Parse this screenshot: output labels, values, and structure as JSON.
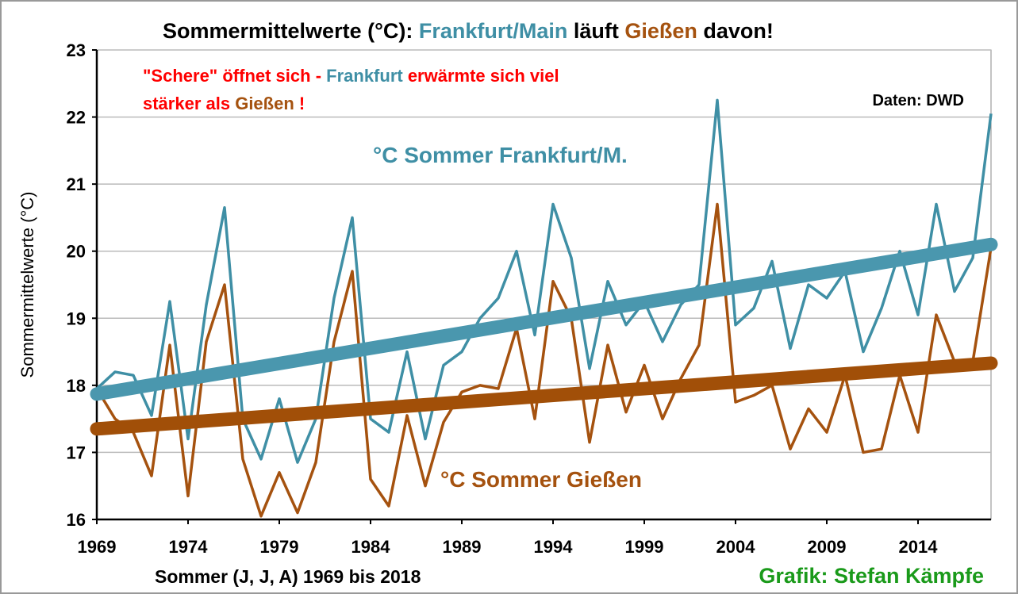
{
  "chart_data": {
    "type": "line",
    "title_parts": [
      {
        "text": "Sommermittelwerte (°C): ",
        "color": "#000000"
      },
      {
        "text": "Frankfurt/Main",
        "color": "#3f8fa5"
      },
      {
        "text": " läuft ",
        "color": "#000000"
      },
      {
        "text": "Gießen",
        "color": "#a5520f"
      },
      {
        "text": " davon!",
        "color": "#000000"
      }
    ],
    "annotation_lines": [
      [
        {
          "text": "\"Schere\" öffnet sich - ",
          "color": "#ff0000"
        },
        {
          "text": "Frankfurt",
          "color": "#3f8fa5"
        },
        {
          "text": " erwärmte sich viel",
          "color": "#ff0000"
        }
      ],
      [
        {
          "text": "stärker als ",
          "color": "#ff0000"
        },
        {
          "text": "Gießen",
          "color": "#a5520f"
        },
        {
          "text": " !",
          "color": "#ff0000"
        }
      ]
    ],
    "source": "Daten: DWD",
    "xlabel": "Sommer (J, J, A) 1969 bis 2018",
    "credit": "Grafik: Stefan Kämpfe",
    "ylabel": "Sommermittelwerte (°C)",
    "x": [
      1969,
      1970,
      1971,
      1972,
      1973,
      1974,
      1975,
      1976,
      1977,
      1978,
      1979,
      1980,
      1981,
      1982,
      1983,
      1984,
      1985,
      1986,
      1987,
      1988,
      1989,
      1990,
      1991,
      1992,
      1993,
      1994,
      1995,
      1996,
      1997,
      1998,
      1999,
      2000,
      2001,
      2002,
      2003,
      2004,
      2005,
      2006,
      2007,
      2008,
      2009,
      2010,
      2011,
      2012,
      2013,
      2014,
      2015,
      2016,
      2017,
      2018
    ],
    "series": [
      {
        "name": "°C Sommer Frankfurt/M.",
        "color": "#3f8fa5",
        "values": [
          17.95,
          18.2,
          18.15,
          17.55,
          19.25,
          17.2,
          19.2,
          20.65,
          17.5,
          16.9,
          17.8,
          16.85,
          17.5,
          19.3,
          20.5,
          17.5,
          17.3,
          18.5,
          17.2,
          18.3,
          18.5,
          19.0,
          19.3,
          20.0,
          18.75,
          20.7,
          19.9,
          18.25,
          19.55,
          18.9,
          19.25,
          18.65,
          19.2,
          19.5,
          22.25,
          18.9,
          19.15,
          19.85,
          18.55,
          19.5,
          19.3,
          19.7,
          18.5,
          19.15,
          20.0,
          19.05,
          20.7,
          19.4,
          19.9,
          22.05
        ]
      },
      {
        "name": "°C Sommer Gießen",
        "color": "#a5520f",
        "values": [
          17.95,
          17.5,
          17.3,
          16.65,
          18.6,
          16.35,
          18.65,
          19.5,
          16.9,
          16.05,
          16.7,
          16.1,
          16.85,
          18.65,
          19.7,
          16.6,
          16.2,
          17.55,
          16.5,
          17.45,
          17.9,
          18.0,
          17.95,
          18.85,
          17.5,
          19.55,
          19.0,
          17.15,
          18.6,
          17.6,
          18.3,
          17.5,
          18.1,
          18.6,
          20.7,
          17.75,
          17.85,
          18.0,
          17.05,
          17.65,
          17.3,
          18.15,
          17.0,
          17.05,
          18.15,
          17.3,
          19.05,
          18.35,
          18.35,
          20.05
        ]
      }
    ],
    "trends": [
      {
        "color": "#4a97ae",
        "x": [
          1969,
          2018
        ],
        "values": [
          17.87,
          20.1
        ]
      },
      {
        "color": "#a14f08",
        "x": [
          1969,
          2018
        ],
        "values": [
          17.35,
          18.33
        ]
      }
    ],
    "xlim": [
      1969,
      2018
    ],
    "xticks": [
      1969,
      1974,
      1979,
      1984,
      1989,
      1994,
      1999,
      2004,
      2009,
      2014
    ],
    "ylim": [
      16,
      23
    ],
    "yticks": [
      16,
      17,
      18,
      19,
      20,
      21,
      22,
      23
    ],
    "grid": true
  }
}
